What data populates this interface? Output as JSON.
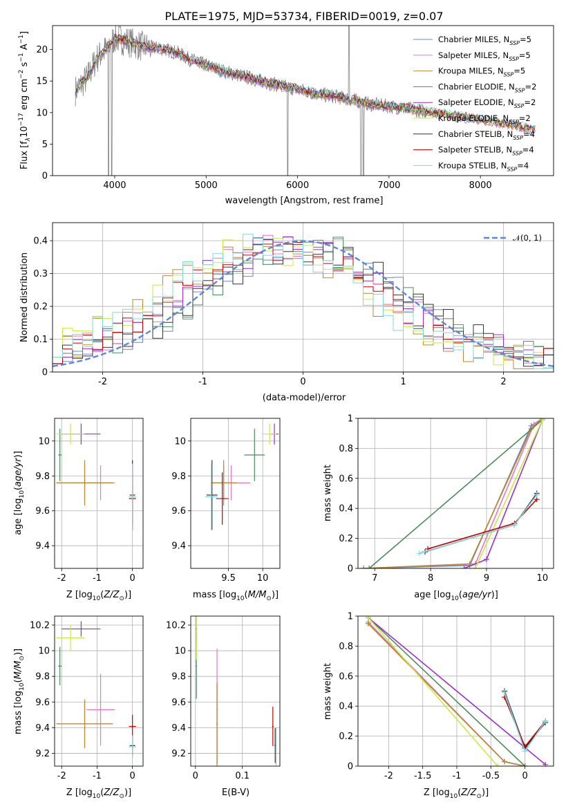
{
  "figure_title": "PLATE=1975, MJD=53734, FIBERID=0019, z=0.07",
  "colors": {
    "Chabrier MILES": "#6a87c8",
    "Salpeter MILES": "#e377c2",
    "Kroupa MILES": "#b88a2c",
    "Chabrier ELODIE": "#4c8a5c",
    "Salpeter ELODIE": "#9b2ec6",
    "Kroupa ELODIE": "#c9e840",
    "Chabrier STELIB": "#333333",
    "Salpeter STELIB": "#c00000",
    "Kroupa STELIB": "#7fd7e0",
    "data": "#808080",
    "normal": "#5b88d8",
    "grid": "#b0b0b0"
  },
  "chart_data": [
    {
      "id": "spectrum",
      "type": "line",
      "title": "PLATE=1975, MJD=53734, FIBERID=0019, z=0.07",
      "xlabel": "wavelength [Angstrom, rest frame]",
      "ylabel": "Flux [fλ10⁻¹⁷ erg cm⁻² s⁻¹ A⁻¹]",
      "xlim": [
        3320,
        8800
      ],
      "ylim": [
        0,
        23.8
      ],
      "xticks": [
        4000,
        5000,
        6000,
        7000,
        8000
      ],
      "yticks": [
        0,
        5,
        10,
        15,
        20
      ],
      "grid": false,
      "legend_position": "top-right",
      "legend": [
        "Chabrier MILES, N_SSP=5",
        "Salpeter MILES, N_SSP=5",
        "Kroupa MILES, N_SSP=5",
        "Chabrier ELODIE, N_SSP=2",
        "Salpeter ELODIE, N_SSP=2",
        "Kroupa ELODIE, N_SSP=2",
        "Chabrier STELIB, N_SSP=4",
        "Salpeter STELIB, N_SSP=4",
        "Kroupa STELIB, N_SSP=4"
      ],
      "continuum_x": [
        3570,
        3700,
        3800,
        3900,
        4000,
        4100,
        4200,
        4300,
        4400,
        4500,
        4600,
        4700,
        4800,
        5000,
        5200,
        5400,
        5600,
        5800,
        6000,
        6200,
        6400,
        6600,
        6800,
        7000,
        7200,
        7400,
        7600,
        7800,
        8000,
        8200,
        8400,
        8600
      ],
      "continuum_y": [
        13.5,
        15.5,
        18.5,
        20.0,
        21.8,
        21.5,
        21.0,
        20.5,
        20.3,
        20.2,
        19.8,
        19.4,
        18.6,
        17.5,
        16.5,
        15.8,
        15.0,
        14.3,
        13.7,
        13.0,
        12.6,
        12.0,
        11.3,
        11.0,
        10.6,
        10.2,
        9.7,
        9.3,
        8.9,
        8.4,
        7.9,
        7.3
      ]
    },
    {
      "id": "residuals",
      "type": "line",
      "xlabel": "(data-model)/error",
      "ylabel": "Normed distribution",
      "xlim": [
        -2.5,
        2.5
      ],
      "ylim": [
        0,
        0.455
      ],
      "xticks": [
        -2,
        -1,
        0,
        1,
        2
      ],
      "yticks": [
        0.0,
        0.1,
        0.2,
        0.3,
        0.4
      ],
      "grid": true,
      "legend_position": "top-right",
      "legend": [
        "𝒩(0, 1)"
      ],
      "normal": {
        "mu": 0,
        "sigma": 1
      },
      "hist_edges": [
        -2.5,
        -2.4,
        -2.3,
        -2.2,
        -2.1,
        -2.0,
        -1.9,
        -1.8,
        -1.7,
        -1.6,
        -1.5,
        -1.4,
        -1.3,
        -1.2,
        -1.1,
        -1.0,
        -0.9,
        -0.8,
        -0.7,
        -0.6,
        -0.5,
        -0.4,
        -0.3,
        -0.2,
        -0.1,
        0.0,
        0.1,
        0.2,
        0.3,
        0.4,
        0.5,
        0.6,
        0.7,
        0.8,
        0.9,
        1.0,
        1.1,
        1.2,
        1.3,
        1.4,
        1.5,
        1.6,
        1.7,
        1.8,
        1.9,
        2.0,
        2.1,
        2.2,
        2.3,
        2.4,
        2.5
      ],
      "hist_base": [
        0.07,
        0.08,
        0.09,
        0.1,
        0.09,
        0.11,
        0.13,
        0.12,
        0.14,
        0.16,
        0.19,
        0.2,
        0.23,
        0.26,
        0.27,
        0.3,
        0.31,
        0.33,
        0.35,
        0.36,
        0.37,
        0.38,
        0.37,
        0.38,
        0.37,
        0.36,
        0.37,
        0.35,
        0.33,
        0.32,
        0.3,
        0.29,
        0.26,
        0.24,
        0.21,
        0.19,
        0.17,
        0.15,
        0.13,
        0.11,
        0.1,
        0.09,
        0.08,
        0.07,
        0.07,
        0.06,
        0.05,
        0.05,
        0.04,
        0.04
      ]
    },
    {
      "id": "age_vs_Z",
      "type": "scatter",
      "xlabel": "Z [log₁₀(Z/Z⊙)]",
      "ylabel": "age  [log₁₀(age/yr)]",
      "xlim": [
        -2.2,
        0.3
      ],
      "ylim": [
        9.27,
        10.13
      ],
      "xticks": [
        -2,
        -1,
        0
      ],
      "yticks": [
        9.4,
        9.6,
        9.8,
        10.0
      ],
      "grid": true
    },
    {
      "id": "age_vs_mass",
      "type": "scatter",
      "xlabel": "mass [log₁₀(M/M⊙)]",
      "ylabel": "",
      "xlim": [
        8.95,
        10.25
      ],
      "ylim": [
        9.27,
        10.13
      ],
      "xticks": [
        9.5,
        10.0
      ],
      "yticks": [
        9.4,
        9.6,
        9.8,
        10.0
      ],
      "grid": true
    },
    {
      "id": "weight_vs_age",
      "type": "line",
      "xlabel": "age  [log₁₀(age/yr)]",
      "ylabel": "mass weight",
      "xlim": [
        6.7,
        10.2
      ],
      "ylim": [
        0,
        1.0
      ],
      "xticks": [
        7,
        8,
        9,
        10
      ],
      "yticks": [
        0.0,
        0.2,
        0.4,
        0.6,
        0.8,
        1.0
      ],
      "grid": true
    },
    {
      "id": "mass_vs_Z",
      "type": "scatter",
      "xlabel": "Z [log₁₀(Z/Z⊙)]",
      "ylabel": "mass [log₁₀(M/M⊙)]",
      "xlim": [
        -2.2,
        0.3
      ],
      "ylim": [
        9.1,
        10.27
      ],
      "xticks": [
        -2,
        -1,
        0
      ],
      "yticks": [
        9.2,
        9.4,
        9.6,
        9.8,
        10.0,
        10.2
      ],
      "grid": true
    },
    {
      "id": "mass_vs_ebv",
      "type": "scatter",
      "xlabel": "E(B-V)",
      "ylabel": "",
      "xlim": [
        -0.01,
        0.18
      ],
      "ylim": [
        9.1,
        10.27
      ],
      "xticks": [
        0.0,
        0.1
      ],
      "yticks": [
        9.2,
        9.4,
        9.6,
        9.8,
        10.0,
        10.2
      ],
      "grid": true
    },
    {
      "id": "weight_vs_Z",
      "type": "line",
      "xlabel": "Z [log₁₀(Z/Z⊙)]",
      "ylabel": "mass weight",
      "xlim": [
        -2.45,
        0.42
      ],
      "ylim": [
        0,
        1.0
      ],
      "xticks": [
        -2.0,
        -1.5,
        -1.0,
        -0.5,
        0.0
      ],
      "yticks": [
        0.0,
        0.2,
        0.4,
        0.6,
        0.8,
        1.0
      ],
      "grid": true
    }
  ],
  "models": [
    {
      "name": "Chabrier MILES",
      "Z": -1.35,
      "zerr": 0.8,
      "age": 9.76,
      "aerr": 0.1,
      "mass": 9.43,
      "merr": 0.18,
      "ebv": 0.046,
      "ages": [
        6.8,
        8.7,
        9.8,
        10.0
      ],
      "ages_w": [
        0.0,
        0.02,
        0.95,
        1.0
      ],
      "Zs": [
        -2.3,
        -0.3,
        0.0
      ],
      "Zs_w": [
        0.95,
        0.03,
        0.0
      ]
    },
    {
      "name": "Salpeter MILES",
      "Z": -0.9,
      "zerr": 0.4,
      "age": 9.76,
      "aerr": 0.1,
      "mass": 9.54,
      "merr": 0.28,
      "ebv": 0.046,
      "ages": [
        6.8,
        8.8,
        9.85,
        10.0
      ],
      "ages_w": [
        0.0,
        0.03,
        0.96,
        1.0
      ],
      "Zs": [
        -2.3,
        -0.3,
        0.0
      ],
      "Zs_w": [
        0.96,
        0.03,
        0.0
      ]
    },
    {
      "name": "Kroupa MILES",
      "Z": -1.35,
      "zerr": 0.8,
      "age": 9.76,
      "aerr": 0.13,
      "mass": 9.43,
      "merr": 0.19,
      "ebv": 0.046,
      "ages": [
        6.8,
        8.7,
        9.8,
        10.0
      ],
      "ages_w": [
        0.0,
        0.03,
        0.93,
        1.0
      ],
      "Zs": [
        -2.3,
        -0.3,
        0.0
      ],
      "Zs_w": [
        0.95,
        0.03,
        0.0
      ]
    },
    {
      "name": "Chabrier ELODIE",
      "Z": -2.05,
      "zerr": 0.05,
      "age": 9.92,
      "aerr": 0.15,
      "mass": 9.88,
      "merr": 0.15,
      "ebv": 0.002,
      "ages": [
        6.9,
        10.0
      ],
      "ages_w": [
        0.0,
        0.99
      ],
      "Zs": [
        -2.3,
        0.0
      ],
      "Zs_w": [
        0.99,
        0.0
      ]
    },
    {
      "name": "Salpeter ELODIE",
      "Z": -1.45,
      "zerr": 0.55,
      "age": 10.04,
      "aerr": 0.06,
      "mass": 10.17,
      "merr": 0.06,
      "ebv": 0.002,
      "ages": [
        8.6,
        9.0,
        10.0
      ],
      "ages_w": [
        0.0,
        0.06,
        0.99
      ],
      "Zs": [
        -2.3,
        0.3
      ],
      "Zs_w": [
        0.99,
        0.01
      ]
    },
    {
      "name": "Kroupa ELODIE",
      "Z": -1.75,
      "zerr": 0.4,
      "age": 10.04,
      "aerr": 0.06,
      "mass": 10.1,
      "merr": 0.1,
      "ebv": 0.002,
      "ages": [
        8.8,
        10.0
      ],
      "ages_w": [
        0.0,
        0.99
      ],
      "Zs": [
        -2.3,
        -0.4
      ],
      "Zs_w": [
        0.99,
        0.0
      ]
    },
    {
      "name": "Chabrier STELIB",
      "Z": 0.0,
      "zerr": 0.08,
      "age": 9.69,
      "aerr": 0.2,
      "mass": 9.26,
      "merr": 0.08,
      "ebv": 0.17,
      "ages": [
        7.9,
        9.5,
        9.9
      ],
      "ages_w": [
        0.11,
        0.29,
        0.5
      ],
      "Zs": [
        -0.3,
        0.0,
        0.3
      ],
      "Zs_w": [
        0.5,
        0.12,
        0.29
      ]
    },
    {
      "name": "Salpeter STELIB",
      "Z": 0.0,
      "zerr": 0.1,
      "age": 9.67,
      "aerr": 0.15,
      "mass": 9.41,
      "merr": 0.09,
      "ebv": 0.165,
      "ages": [
        7.95,
        9.5,
        9.9
      ],
      "ages_w": [
        0.13,
        0.3,
        0.46
      ],
      "Zs": [
        -0.3,
        0.0,
        0.3
      ],
      "Zs_w": [
        0.46,
        0.13,
        0.3
      ]
    },
    {
      "name": "Kroupa STELIB",
      "Z": 0.0,
      "zerr": 0.1,
      "age": 9.68,
      "aerr": 0.19,
      "mass": 9.25,
      "merr": 0.09,
      "ebv": 0.172,
      "ages": [
        7.8,
        9.5,
        9.9
      ],
      "ages_w": [
        0.1,
        0.29,
        0.49
      ],
      "Zs": [
        -0.3,
        0.0,
        0.3
      ],
      "Zs_w": [
        0.49,
        0.1,
        0.3
      ]
    }
  ]
}
